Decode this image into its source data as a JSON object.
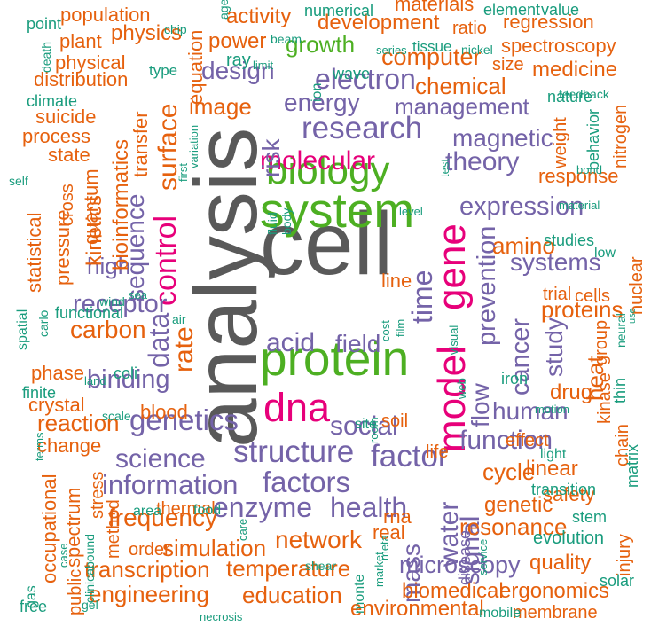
{
  "colors": {
    "gray": "#595959",
    "green": "#4daf22",
    "magenta": "#e7007a",
    "purple": "#7463a8",
    "orange": "#e6610e",
    "teal": "#199c7d"
  },
  "words": [
    {
      "text": "analysis",
      "color": "gray"
    },
    {
      "text": "cell",
      "color": "gray"
    },
    {
      "text": "system",
      "color": "green"
    },
    {
      "text": "protein",
      "color": "green"
    },
    {
      "text": "biology",
      "color": "green"
    },
    {
      "text": "growth",
      "color": "green"
    },
    {
      "text": "model",
      "color": "magenta"
    },
    {
      "text": "gene",
      "color": "magenta"
    },
    {
      "text": "molecular",
      "color": "magenta"
    },
    {
      "text": "dna",
      "color": "magenta"
    },
    {
      "text": "control",
      "color": "magenta"
    },
    {
      "text": "energy",
      "color": "purple"
    },
    {
      "text": "electron",
      "color": "purple"
    },
    {
      "text": "research",
      "color": "purple"
    },
    {
      "text": "theory",
      "color": "purple"
    },
    {
      "text": "magnetic",
      "color": "purple"
    },
    {
      "text": "management",
      "color": "purple"
    },
    {
      "text": "design",
      "color": "purple"
    },
    {
      "text": "risk",
      "color": "purple"
    },
    {
      "text": "expression",
      "color": "purple"
    },
    {
      "text": "systems",
      "color": "purple"
    },
    {
      "text": "prevention",
      "color": "purple"
    },
    {
      "text": "time",
      "color": "purple"
    },
    {
      "text": "sequence",
      "color": "purple"
    },
    {
      "text": "data",
      "color": "purple"
    },
    {
      "text": "high",
      "color": "purple"
    },
    {
      "text": "receptor",
      "color": "purple"
    },
    {
      "text": "acid",
      "color": "purple"
    },
    {
      "text": "field",
      "color": "purple"
    },
    {
      "text": "binding",
      "color": "purple"
    },
    {
      "text": "genetics",
      "color": "purple"
    },
    {
      "text": "social",
      "color": "purple"
    },
    {
      "text": "human",
      "color": "purple"
    },
    {
      "text": "structure",
      "color": "purple"
    },
    {
      "text": "factor",
      "color": "purple"
    },
    {
      "text": "function",
      "color": "purple"
    },
    {
      "text": "science",
      "color": "purple"
    },
    {
      "text": "information",
      "color": "purple"
    },
    {
      "text": "factors",
      "color": "purple"
    },
    {
      "text": "enzyme",
      "color": "purple"
    },
    {
      "text": "health",
      "color": "purple"
    },
    {
      "text": "cancer",
      "color": "purple"
    },
    {
      "text": "study",
      "color": "purple"
    },
    {
      "text": "flow",
      "color": "purple"
    },
    {
      "text": "water",
      "color": "purple"
    },
    {
      "text": "signal",
      "color": "purple"
    },
    {
      "text": "mass",
      "color": "purple"
    },
    {
      "text": "microscopy",
      "color": "purple"
    },
    {
      "text": "surface",
      "color": "orange"
    },
    {
      "text": "image",
      "color": "orange"
    },
    {
      "text": "equation",
      "color": "orange"
    },
    {
      "text": "transfer",
      "color": "orange"
    },
    {
      "text": "bioinformatics",
      "color": "orange"
    },
    {
      "text": "kinetics",
      "color": "orange"
    },
    {
      "text": "rate",
      "color": "orange"
    },
    {
      "text": "activity",
      "color": "orange"
    },
    {
      "text": "power",
      "color": "orange"
    },
    {
      "text": "development",
      "color": "orange"
    },
    {
      "text": "computer",
      "color": "orange"
    },
    {
      "text": "chemical",
      "color": "orange"
    },
    {
      "text": "physics",
      "color": "orange"
    },
    {
      "text": "population",
      "color": "orange"
    },
    {
      "text": "plant",
      "color": "orange"
    },
    {
      "text": "physical",
      "color": "orange"
    },
    {
      "text": "distribution",
      "color": "orange"
    },
    {
      "text": "suicide",
      "color": "orange"
    },
    {
      "text": "process",
      "color": "orange"
    },
    {
      "text": "state",
      "color": "orange"
    },
    {
      "text": "quantum",
      "color": "orange"
    },
    {
      "text": "cross",
      "color": "orange"
    },
    {
      "text": "pressure",
      "color": "orange"
    },
    {
      "text": "statistical",
      "color": "orange"
    },
    {
      "text": "carbon",
      "color": "orange"
    },
    {
      "text": "phase",
      "color": "orange"
    },
    {
      "text": "reaction",
      "color": "orange"
    },
    {
      "text": "crystal",
      "color": "orange"
    },
    {
      "text": "change",
      "color": "orange"
    },
    {
      "text": "blood",
      "color": "orange"
    },
    {
      "text": "amino",
      "color": "orange"
    },
    {
      "text": "response",
      "color": "orange"
    },
    {
      "text": "proteins",
      "color": "orange"
    },
    {
      "text": "medicine",
      "color": "orange"
    },
    {
      "text": "spectroscopy",
      "color": "orange"
    },
    {
      "text": "regression",
      "color": "orange"
    },
    {
      "text": "materials",
      "color": "orange"
    },
    {
      "text": "ratio",
      "color": "orange"
    },
    {
      "text": "size",
      "color": "orange"
    },
    {
      "text": "weight",
      "color": "orange"
    },
    {
      "text": "nitrogen",
      "color": "orange"
    },
    {
      "text": "heat",
      "color": "orange"
    },
    {
      "text": "drug",
      "color": "orange"
    },
    {
      "text": "group",
      "color": "orange"
    },
    {
      "text": "trial",
      "color": "orange"
    },
    {
      "text": "cells",
      "color": "orange"
    },
    {
      "text": "nuclear",
      "color": "orange"
    },
    {
      "text": "kinase",
      "color": "orange"
    },
    {
      "text": "line",
      "color": "orange"
    },
    {
      "text": "cycle",
      "color": "orange"
    },
    {
      "text": "linear",
      "color": "orange"
    },
    {
      "text": "genetic",
      "color": "orange"
    },
    {
      "text": "safety",
      "color": "orange"
    },
    {
      "text": "resonance",
      "color": "orange"
    },
    {
      "text": "frequency",
      "color": "orange"
    },
    {
      "text": "simulation",
      "color": "orange"
    },
    {
      "text": "network",
      "color": "orange"
    },
    {
      "text": "temperature",
      "color": "orange"
    },
    {
      "text": "transcription",
      "color": "orange"
    },
    {
      "text": "engineering",
      "color": "orange"
    },
    {
      "text": "education",
      "color": "orange"
    },
    {
      "text": "biomedical",
      "color": "orange"
    },
    {
      "text": "ergonomics",
      "color": "orange"
    },
    {
      "text": "environmental",
      "color": "orange"
    },
    {
      "text": "membrane",
      "color": "orange"
    },
    {
      "text": "quality",
      "color": "orange"
    },
    {
      "text": "rna",
      "color": "orange"
    },
    {
      "text": "spectrum",
      "color": "orange"
    },
    {
      "text": "occupational",
      "color": "orange"
    },
    {
      "text": "stress",
      "color": "orange"
    },
    {
      "text": "method",
      "color": "orange"
    },
    {
      "text": "public",
      "color": "orange"
    },
    {
      "text": "thermal",
      "color": "orange"
    },
    {
      "text": "order",
      "color": "orange"
    },
    {
      "text": "injury",
      "color": "orange"
    },
    {
      "text": "chain",
      "color": "orange"
    },
    {
      "text": "soil",
      "color": "orange"
    },
    {
      "text": "life",
      "color": "orange"
    },
    {
      "text": "effect",
      "color": "orange"
    },
    {
      "text": "real",
      "color": "orange"
    },
    {
      "text": "disease",
      "color": "purple"
    },
    {
      "text": "point",
      "color": "teal"
    },
    {
      "text": "chip",
      "color": "teal"
    },
    {
      "text": "age",
      "color": "teal"
    },
    {
      "text": "beam",
      "color": "teal"
    },
    {
      "text": "numerical",
      "color": "teal"
    },
    {
      "text": "element",
      "color": "teal"
    },
    {
      "text": "value",
      "color": "teal"
    },
    {
      "text": "death",
      "color": "teal"
    },
    {
      "text": "series",
      "color": "teal"
    },
    {
      "text": "tissue",
      "color": "teal"
    },
    {
      "text": "nickel",
      "color": "teal"
    },
    {
      "text": "ray",
      "color": "teal"
    },
    {
      "text": "limit",
      "color": "teal"
    },
    {
      "text": "type",
      "color": "teal"
    },
    {
      "text": "ion",
      "color": "teal"
    },
    {
      "text": "wave",
      "color": "teal"
    },
    {
      "text": "climate",
      "color": "teal"
    },
    {
      "text": "feedback",
      "color": "teal"
    },
    {
      "text": "nature",
      "color": "teal"
    },
    {
      "text": "behavior",
      "color": "teal"
    },
    {
      "text": "first",
      "color": "teal"
    },
    {
      "text": "variation",
      "color": "teal"
    },
    {
      "text": "self",
      "color": "teal"
    },
    {
      "text": "test",
      "color": "teal"
    },
    {
      "text": "bond",
      "color": "teal"
    },
    {
      "text": "fluid",
      "color": "teal"
    },
    {
      "text": "body",
      "color": "teal"
    },
    {
      "text": "level",
      "color": "teal"
    },
    {
      "text": "material",
      "color": "teal"
    },
    {
      "text": "studies",
      "color": "teal"
    },
    {
      "text": "low",
      "color": "teal"
    },
    {
      "text": "wind",
      "color": "teal"
    },
    {
      "text": "sea",
      "color": "teal"
    },
    {
      "text": "air",
      "color": "teal"
    },
    {
      "text": "spatial",
      "color": "teal"
    },
    {
      "text": "carlo",
      "color": "teal"
    },
    {
      "text": "functional",
      "color": "teal"
    },
    {
      "text": "land",
      "color": "teal"
    },
    {
      "text": "coli",
      "color": "teal"
    },
    {
      "text": "finite",
      "color": "teal"
    },
    {
      "text": "scale",
      "color": "teal"
    },
    {
      "text": "cost",
      "color": "teal"
    },
    {
      "text": "film",
      "color": "teal"
    },
    {
      "text": "visual",
      "color": "teal"
    },
    {
      "text": "web",
      "color": "teal"
    },
    {
      "text": "iron",
      "color": "teal"
    },
    {
      "text": "motion",
      "color": "teal"
    },
    {
      "text": "thin",
      "color": "teal"
    },
    {
      "text": "neural",
      "color": "teal"
    },
    {
      "text": "use",
      "color": "teal"
    },
    {
      "text": "room",
      "color": "teal"
    },
    {
      "text": "site",
      "color": "teal"
    },
    {
      "text": "light",
      "color": "teal"
    },
    {
      "text": "matrix",
      "color": "teal"
    },
    {
      "text": "transition",
      "color": "teal"
    },
    {
      "text": "terms",
      "color": "teal"
    },
    {
      "text": "area",
      "color": "teal"
    },
    {
      "text": "food",
      "color": "teal"
    },
    {
      "text": "care",
      "color": "teal"
    },
    {
      "text": "case",
      "color": "teal"
    },
    {
      "text": "bound",
      "color": "teal"
    },
    {
      "text": "gas",
      "color": "teal"
    },
    {
      "text": "clinical",
      "color": "teal"
    },
    {
      "text": "gel",
      "color": "teal"
    },
    {
      "text": "free",
      "color": "teal"
    },
    {
      "text": "shear",
      "color": "teal"
    },
    {
      "text": "necrosis",
      "color": "teal"
    },
    {
      "text": "monte",
      "color": "teal"
    },
    {
      "text": "meta",
      "color": "teal"
    },
    {
      "text": "market",
      "color": "teal"
    },
    {
      "text": "mobile",
      "color": "teal"
    },
    {
      "text": "service",
      "color": "teal"
    },
    {
      "text": "stem",
      "color": "teal"
    },
    {
      "text": "evolution",
      "color": "teal"
    },
    {
      "text": "solar",
      "color": "teal"
    }
  ]
}
